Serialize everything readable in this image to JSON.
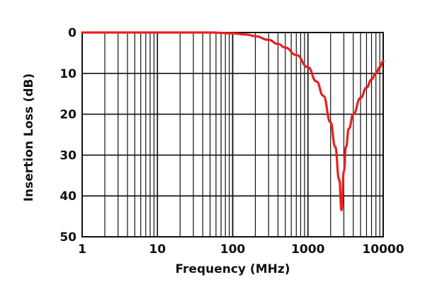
{
  "chart_data": {
    "type": "line",
    "xlabel": "Frequency (MHz)",
    "ylabel": "Insertion Loss (dB)",
    "x_scale": "log",
    "xlim": [
      1,
      10000
    ],
    "ylim": [
      0,
      50
    ],
    "y_inverted": true,
    "grid": true,
    "x_ticks": [
      "1",
      "10",
      "100",
      "1000",
      "10000"
    ],
    "y_ticks": [
      "0",
      "10",
      "20",
      "30",
      "40",
      "50"
    ],
    "series": [
      {
        "color": "#e8201e",
        "x": [
          1,
          10,
          50,
          100,
          150,
          200,
          300,
          400,
          500,
          700,
          1000,
          1300,
          1600,
          2000,
          2300,
          2600,
          2800,
          3000,
          3200,
          3500,
          4000,
          5000,
          6000,
          7000,
          8000,
          9000,
          10000
        ],
        "y": [
          0,
          0,
          0,
          0.2,
          0.5,
          0.9,
          1.8,
          2.8,
          3.7,
          5.5,
          8.5,
          12,
          15.5,
          22,
          28,
          36,
          43.5,
          34,
          28,
          23.5,
          20,
          16,
          13.5,
          11.5,
          10,
          8.5,
          7
        ]
      }
    ]
  }
}
